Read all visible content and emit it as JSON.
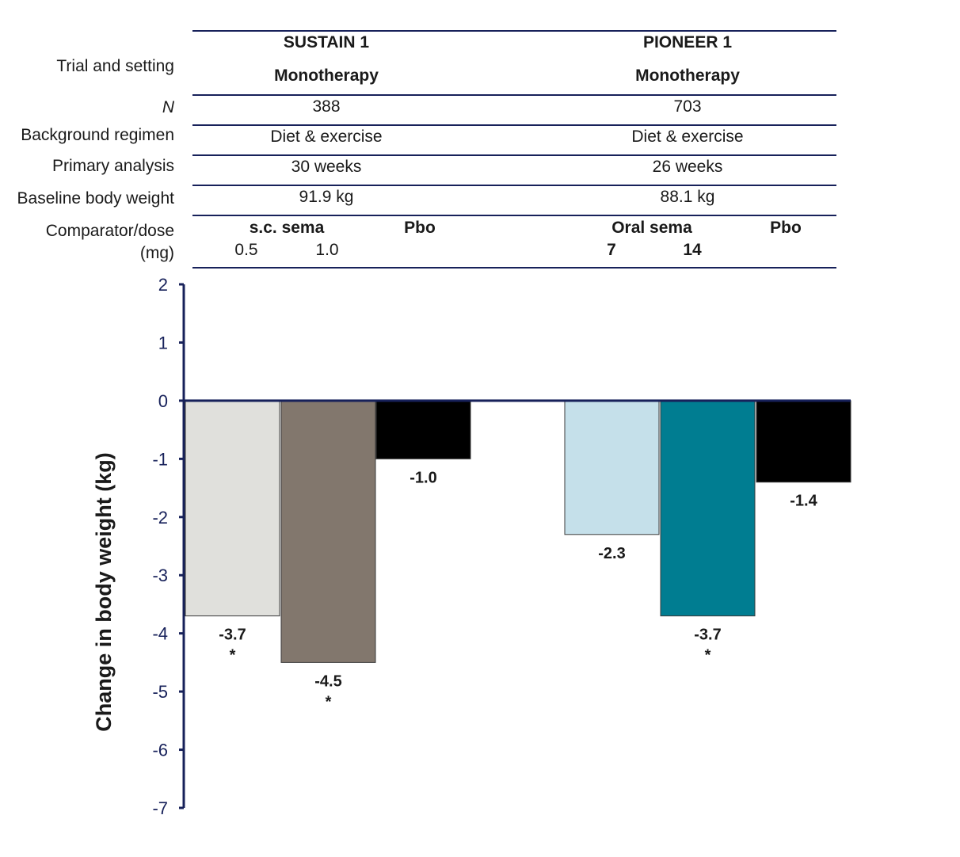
{
  "table": {
    "row_labels": {
      "trial": "Trial and setting",
      "n": "N",
      "background": "Background regimen",
      "primary": "Primary analysis",
      "baseline": "Baseline body weight",
      "comparator_line1": "Comparator/dose",
      "comparator_line2": "(mg)"
    },
    "trials": [
      {
        "name": "SUSTAIN 1",
        "setting": "Monotherapy",
        "n": "388",
        "background": "Diet & exercise",
        "primary": "30 weeks",
        "baseline": "91.9 kg",
        "drug": "s.c. sema",
        "doses": [
          "0.5",
          "1.0"
        ],
        "placebo": "Pbo"
      },
      {
        "name": "PIONEER 1",
        "setting": "Monotherapy",
        "n": "703",
        "background": "Diet & exercise",
        "primary": "26 weeks",
        "baseline": "88.1 kg",
        "drug": "Oral sema",
        "doses": [
          "7",
          "14"
        ],
        "placebo": "Pbo"
      }
    ]
  },
  "chart_data": {
    "type": "bar",
    "ylabel": "Change in body weight (kg)",
    "ylim": [
      -7,
      2
    ],
    "yticks": [
      2,
      1,
      0,
      -1,
      -2,
      -3,
      -4,
      -5,
      -6,
      -7
    ],
    "grid": false,
    "bars": [
      {
        "group": "SUSTAIN 1",
        "label": "s.c. sema 0.5",
        "value": -3.7,
        "value_label": "-3.7",
        "significance": "*",
        "color": "#e0e0dc"
      },
      {
        "group": "SUSTAIN 1",
        "label": "s.c. sema 1.0",
        "value": -4.5,
        "value_label": "-4.5",
        "significance": "*",
        "color": "#82776d"
      },
      {
        "group": "SUSTAIN 1",
        "label": "Pbo",
        "value": -1.0,
        "value_label": "-1.0",
        "significance": "",
        "color": "#000000"
      },
      {
        "group": "PIONEER 1",
        "label": "Oral sema 7",
        "value": -2.3,
        "value_label": "-2.3",
        "significance": "",
        "color": "#c5e0ea"
      },
      {
        "group": "PIONEER 1",
        "label": "Oral sema 14",
        "value": -3.7,
        "value_label": "-3.7",
        "significance": "*",
        "color": "#007d91"
      },
      {
        "group": "PIONEER 1",
        "label": "Pbo",
        "value": -1.4,
        "value_label": "-1.4",
        "significance": "",
        "color": "#000000"
      }
    ],
    "axis_color": "#17215a"
  }
}
